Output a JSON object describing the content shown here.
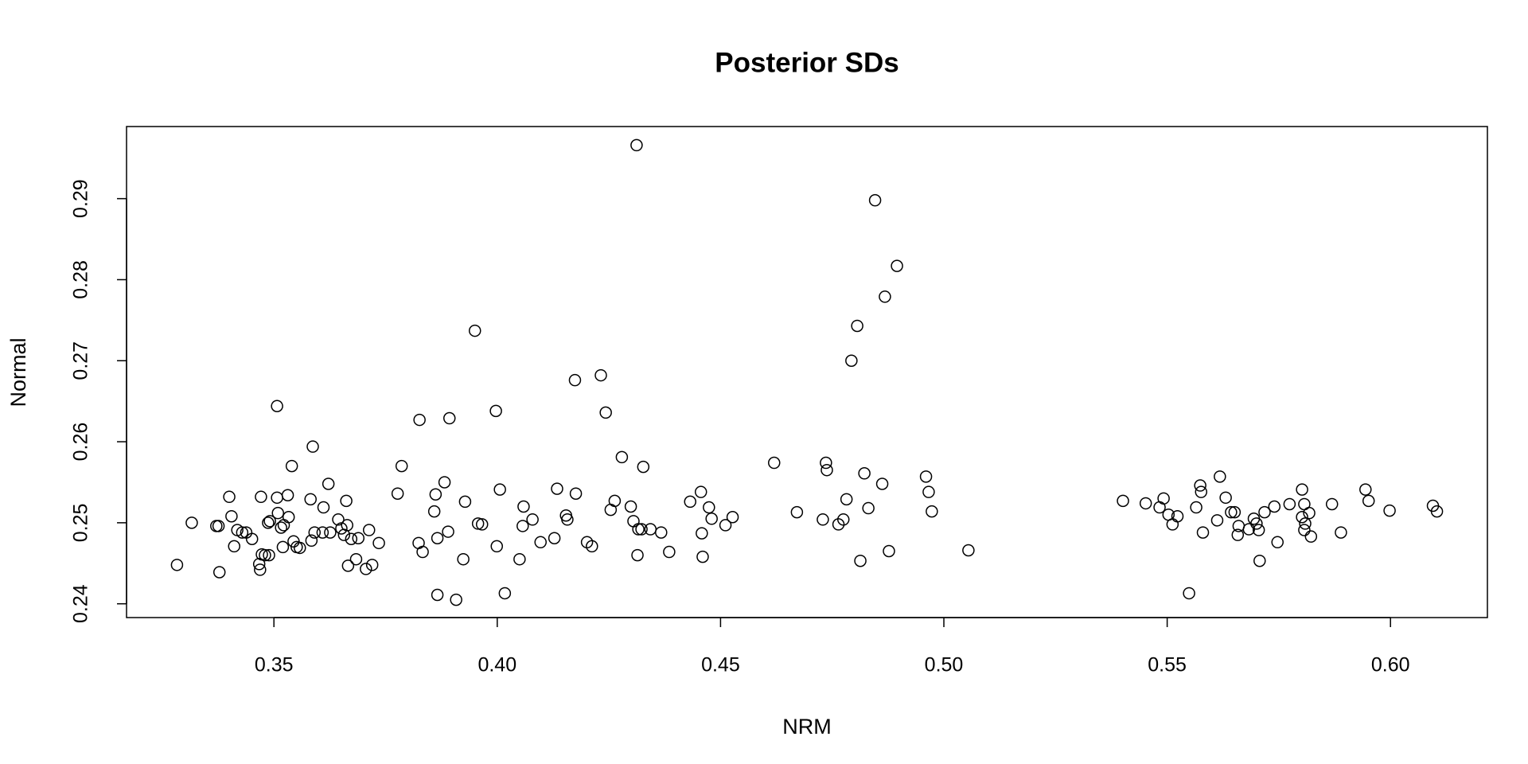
{
  "chart_data": {
    "type": "scatter",
    "title": "Posterior SDs",
    "x_label": "NRM",
    "y_label": "Normal",
    "color": "#000000",
    "grid": false,
    "x": [
      0.3283,
      0.3316,
      0.3371,
      0.3376,
      0.3378,
      0.34,
      0.3405,
      0.3411,
      0.3418,
      0.3429,
      0.3438,
      0.3451,
      0.3467,
      0.3469,
      0.3471,
      0.3473,
      0.348,
      0.3489,
      0.3487,
      0.3491,
      0.3507,
      0.3507,
      0.3509,
      0.3516,
      0.352,
      0.3522,
      0.3531,
      0.3533,
      0.354,
      0.3544,
      0.3551,
      0.3558,
      0.3582,
      0.3584,
      0.3587,
      0.3591,
      0.3609,
      0.3611,
      0.3622,
      0.3626,
      0.3644,
      0.3651,
      0.3657,
      0.3662,
      0.3664,
      0.3666,
      0.3673,
      0.3684,
      0.3689,
      0.3706,
      0.3713,
      0.372,
      0.3735,
      0.3777,
      0.3786,
      0.3824,
      0.3826,
      0.3833,
      0.3859,
      0.3862,
      0.3866,
      0.3866,
      0.3882,
      0.389,
      0.3893,
      0.3908,
      0.3924,
      0.3928,
      0.395,
      0.3957,
      0.3966,
      0.3997,
      0.3999,
      0.4006,
      0.4017,
      0.405,
      0.4057,
      0.4059,
      0.4079,
      0.4097,
      0.4128,
      0.4134,
      0.4154,
      0.4157,
      0.4174,
      0.4176,
      0.4201,
      0.4212,
      0.4232,
      0.4243,
      0.4254,
      0.4263,
      0.4279,
      0.4299,
      0.4305,
      0.4312,
      0.4314,
      0.4316,
      0.4323,
      0.4327,
      0.4343,
      0.4367,
      0.4385,
      0.4432,
      0.4456,
      0.4458,
      0.446,
      0.4474,
      0.448,
      0.4511,
      0.4527,
      0.462,
      0.4671,
      0.4729,
      0.4736,
      0.4738,
      0.4764,
      0.4775,
      0.4782,
      0.4793,
      0.4806,
      0.4813,
      0.4822,
      0.4831,
      0.4846,
      0.4862,
      0.4868,
      0.4877,
      0.4895,
      0.496,
      0.4966,
      0.4973,
      0.5055,
      0.5401,
      0.5452,
      0.5483,
      0.5492,
      0.5503,
      0.5512,
      0.5523,
      0.5549,
      0.5565,
      0.5574,
      0.5576,
      0.558,
      0.5612,
      0.5618,
      0.5631,
      0.5643,
      0.5651,
      0.5658,
      0.566,
      0.5683,
      0.5694,
      0.57,
      0.5705,
      0.5707,
      0.5718,
      0.574,
      0.5747,
      0.5774,
      0.5802,
      0.5802,
      0.5807,
      0.5807,
      0.5809,
      0.5818,
      0.5822,
      0.5869,
      0.5889,
      0.5944,
      0.5951,
      0.5998,
      0.6095,
      0.6104
    ],
    "values": [
      0.2448,
      0.25,
      0.2496,
      0.2496,
      0.2439,
      0.2532,
      0.2508,
      0.2471,
      0.2491,
      0.2488,
      0.2488,
      0.248,
      0.2449,
      0.2442,
      0.2532,
      0.2461,
      0.246,
      0.246,
      0.25,
      0.2502,
      0.2644,
      0.2531,
      0.2512,
      0.2494,
      0.247,
      0.2497,
      0.2534,
      0.2507,
      0.257,
      0.2477,
      0.247,
      0.2469,
      0.2529,
      0.2478,
      0.2594,
      0.2488,
      0.2488,
      0.2519,
      0.2548,
      0.2488,
      0.2504,
      0.2493,
      0.2485,
      0.2527,
      0.2497,
      0.2447,
      0.248,
      0.2455,
      0.2481,
      0.2443,
      0.2491,
      0.2448,
      0.2475,
      0.2536,
      0.257,
      0.2475,
      0.2627,
      0.2464,
      0.2514,
      0.2535,
      0.2411,
      0.2481,
      0.255,
      0.2489,
      0.2629,
      0.2405,
      0.2455,
      0.2526,
      0.2737,
      0.2499,
      0.2498,
      0.2638,
      0.2471,
      0.2541,
      0.2413,
      0.2455,
      0.2496,
      0.252,
      0.2504,
      0.2476,
      0.2481,
      0.2542,
      0.2509,
      0.2504,
      0.2676,
      0.2536,
      0.2476,
      0.2471,
      0.2682,
      0.2636,
      0.2516,
      0.2527,
      0.2581,
      0.252,
      0.2502,
      0.2966,
      0.246,
      0.2492,
      0.2492,
      0.2569,
      0.2492,
      0.2488,
      0.2464,
      0.2526,
      0.2538,
      0.2487,
      0.2458,
      0.2519,
      0.2505,
      0.2497,
      0.2507,
      0.2574,
      0.2513,
      0.2504,
      0.2574,
      0.2565,
      0.2498,
      0.2504,
      0.2529,
      0.27,
      0.2743,
      0.2453,
      0.2561,
      0.2518,
      0.2898,
      0.2548,
      0.2779,
      0.2465,
      0.2817,
      0.2557,
      0.2538,
      0.2514,
      0.2466,
      0.2527,
      0.2524,
      0.2519,
      0.253,
      0.251,
      0.2498,
      0.2508,
      0.2413,
      0.2519,
      0.2546,
      0.2538,
      0.2488,
      0.2503,
      0.2557,
      0.2531,
      0.2513,
      0.2513,
      0.2485,
      0.2496,
      0.2492,
      0.2505,
      0.2499,
      0.2491,
      0.2453,
      0.2513,
      0.252,
      0.2476,
      0.2523,
      0.2541,
      0.2507,
      0.2523,
      0.2491,
      0.2499,
      0.2512,
      0.2483,
      0.2523,
      0.2488,
      0.2541,
      0.2527,
      0.2515,
      0.2521,
      0.2514
    ],
    "xlim": [
      0.317,
      0.6217
    ],
    "ylim": [
      0.2383,
      0.2989
    ],
    "xticks": [
      0.35,
      {
        "value": 0.4,
        "label": "0.40"
      },
      0.45,
      {
        "value": 0.5,
        "label": "0.50"
      },
      0.55,
      {
        "value": 0.6,
        "label": "0.60"
      }
    ],
    "yticks": [
      0.24,
      0.25,
      0.26,
      0.27,
      0.28,
      0.29
    ]
  }
}
